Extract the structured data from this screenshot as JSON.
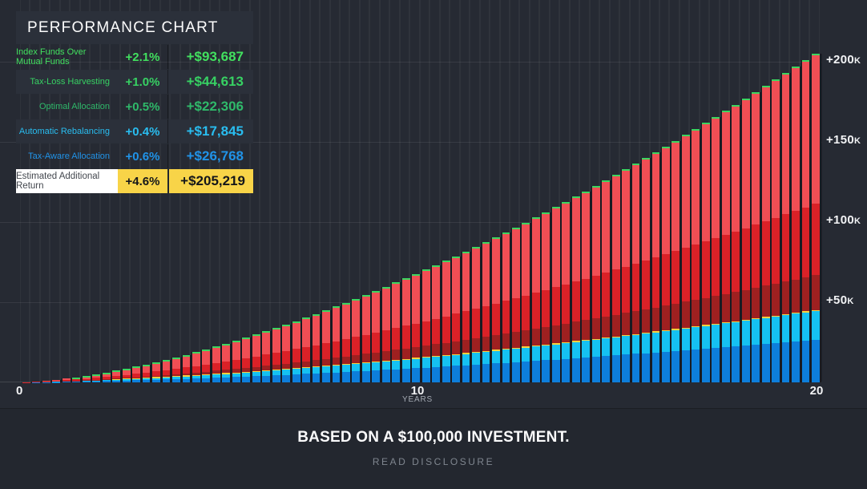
{
  "legend": {
    "title": "PERFORMANCE CHART",
    "rows": [
      {
        "label": "Index Funds Over Mutual Funds",
        "percent": "+2.1%",
        "amount": "+$93,687",
        "color": "#42e05f"
      },
      {
        "label": "Tax-Loss Harvesting",
        "percent": "+1.0%",
        "amount": "+$44,613",
        "color": "#37d163"
      },
      {
        "label": "Optimal Allocation",
        "percent": "+0.5%",
        "amount": "+$22,306",
        "color": "#2fb96a"
      },
      {
        "label": "Automatic Rebalancing",
        "percent": "+0.4%",
        "amount": "+$17,845",
        "color": "#29bdf0"
      },
      {
        "label": "Tax-Aware Allocation",
        "percent": "+0.6%",
        "amount": "+$26,768",
        "color": "#2093e8"
      }
    ],
    "total_row": {
      "label": "Estimated Additional Return",
      "percent": "+4.6%",
      "amount": "+$205,219",
      "bg": "#f8d448",
      "label_bg": "#ffffff"
    }
  },
  "chart_data": {
    "type": "bar",
    "stacked": true,
    "title": "Performance Chart — estimated additional return vs. a $100,000 investment",
    "bar_count": 80,
    "years_span": 20,
    "growth_exponent": 1.6,
    "total_final": 205219,
    "x_axis": {
      "ticks": [
        "0",
        "10",
        "20"
      ],
      "label": "YEARS",
      "range_years": [
        0,
        20
      ]
    },
    "y_axis": {
      "ticks": [
        "+50K",
        "+100K",
        "+150K",
        "+200K"
      ],
      "tick_values": [
        50000,
        100000,
        150000,
        200000
      ],
      "ylim": [
        0,
        238500
      ],
      "unit": "USD"
    },
    "series": [
      {
        "name": "Tax-Aware Allocation",
        "final_value": 26768,
        "color": "#0d7edb"
      },
      {
        "name": "Automatic Rebalancing",
        "final_value": 17845,
        "color": "#15c1f2"
      },
      {
        "name": "Optimal Allocation",
        "final_value": 22306,
        "color": "#9e2020"
      },
      {
        "name": "Tax-Loss Harvesting",
        "final_value": 44613,
        "color": "#da2127"
      },
      {
        "name": "Index Funds Over Mutual Funds",
        "final_value": 93687,
        "color": "#f04e54"
      }
    ],
    "accents": {
      "yellow_sliver": "#f8d33e",
      "green_cap": "#3cd660"
    },
    "colors": {
      "background": "#262a33",
      "panel": "#2b303a",
      "grid": "rgba(255,255,255,0.08)",
      "bar_gap": "#181b22"
    }
  },
  "footer": {
    "headline": "BASED ON A $100,000 INVESTMENT.",
    "disclosure": "READ DISCLOSURE"
  }
}
